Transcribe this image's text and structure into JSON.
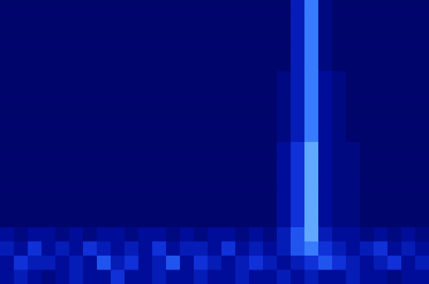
{
  "chart_data": {
    "type": "heatmap",
    "tick_labels": false,
    "color_range": [
      0,
      10
    ],
    "cells": [
      [
        1,
        1,
        1,
        1,
        1,
        1,
        1,
        1,
        1,
        1,
        1,
        1,
        1,
        1,
        1,
        1,
        1,
        1,
        1,
        1,
        1,
        4,
        7,
        2,
        1,
        1,
        1,
        1,
        1,
        1,
        1
      ],
      [
        1,
        1,
        1,
        1,
        1,
        1,
        1,
        1,
        1,
        1,
        1,
        1,
        1,
        1,
        1,
        1,
        1,
        1,
        1,
        1,
        1,
        4,
        7,
        2,
        1,
        1,
        1,
        1,
        1,
        1,
        1
      ],
      [
        1,
        1,
        1,
        1,
        1,
        1,
        1,
        1,
        1,
        1,
        1,
        1,
        1,
        1,
        1,
        1,
        1,
        1,
        1,
        1,
        1,
        4,
        7,
        2,
        1,
        1,
        1,
        1,
        1,
        1,
        1
      ],
      [
        1,
        1,
        1,
        1,
        1,
        1,
        1,
        1,
        1,
        1,
        1,
        1,
        1,
        1,
        1,
        1,
        1,
        1,
        1,
        1,
        1,
        4,
        7,
        2,
        1,
        1,
        1,
        1,
        1,
        1,
        1
      ],
      [
        1,
        1,
        1,
        1,
        1,
        1,
        1,
        1,
        1,
        1,
        1,
        1,
        1,
        1,
        1,
        1,
        1,
        1,
        1,
        1,
        1,
        4,
        7,
        2,
        1,
        1,
        1,
        1,
        1,
        1,
        1
      ],
      [
        1,
        1,
        1,
        1,
        1,
        1,
        1,
        1,
        1,
        1,
        1,
        1,
        1,
        1,
        1,
        1,
        1,
        1,
        1,
        1,
        2,
        4,
        7,
        3,
        2,
        1,
        1,
        1,
        1,
        1,
        1
      ],
      [
        1,
        1,
        1,
        1,
        1,
        1,
        1,
        1,
        1,
        1,
        1,
        1,
        1,
        1,
        1,
        1,
        1,
        1,
        1,
        1,
        2,
        4,
        7,
        3,
        2,
        1,
        1,
        1,
        1,
        1,
        1
      ],
      [
        1,
        1,
        1,
        1,
        1,
        1,
        1,
        1,
        1,
        1,
        1,
        1,
        1,
        1,
        1,
        1,
        1,
        1,
        1,
        1,
        2,
        4,
        7,
        3,
        2,
        1,
        1,
        1,
        1,
        1,
        1
      ],
      [
        1,
        1,
        1,
        1,
        1,
        1,
        1,
        1,
        1,
        1,
        1,
        1,
        1,
        1,
        1,
        1,
        1,
        1,
        1,
        1,
        2,
        4,
        7,
        3,
        2,
        1,
        1,
        1,
        1,
        1,
        1
      ],
      [
        1,
        1,
        1,
        1,
        1,
        1,
        1,
        1,
        1,
        1,
        1,
        1,
        1,
        1,
        1,
        1,
        1,
        1,
        1,
        1,
        2,
        4,
        7,
        3,
        2,
        1,
        1,
        1,
        1,
        1,
        1
      ],
      [
        1,
        1,
        1,
        1,
        1,
        1,
        1,
        1,
        1,
        1,
        1,
        1,
        1,
        1,
        1,
        1,
        1,
        1,
        1,
        1,
        3,
        5,
        8,
        3,
        2,
        2,
        1,
        1,
        1,
        1,
        1
      ],
      [
        1,
        1,
        1,
        1,
        1,
        1,
        1,
        1,
        1,
        1,
        1,
        1,
        1,
        1,
        1,
        1,
        1,
        1,
        1,
        1,
        3,
        5,
        8,
        3,
        2,
        2,
        1,
        1,
        1,
        1,
        1
      ],
      [
        1,
        1,
        1,
        1,
        1,
        1,
        1,
        1,
        1,
        1,
        1,
        1,
        1,
        1,
        1,
        1,
        1,
        1,
        1,
        1,
        3,
        5,
        8,
        3,
        2,
        2,
        1,
        1,
        1,
        1,
        1
      ],
      [
        1,
        1,
        1,
        1,
        1,
        1,
        1,
        1,
        1,
        1,
        1,
        1,
        1,
        1,
        1,
        1,
        1,
        1,
        1,
        1,
        3,
        5,
        8,
        3,
        2,
        2,
        1,
        1,
        1,
        1,
        1
      ],
      [
        1,
        1,
        1,
        1,
        1,
        1,
        1,
        1,
        1,
        1,
        1,
        1,
        1,
        1,
        1,
        1,
        1,
        1,
        1,
        1,
        3,
        5,
        8,
        3,
        2,
        2,
        1,
        1,
        1,
        1,
        1
      ],
      [
        1,
        1,
        1,
        1,
        1,
        1,
        1,
        1,
        1,
        1,
        1,
        1,
        1,
        1,
        1,
        1,
        1,
        1,
        1,
        1,
        3,
        5,
        8,
        3,
        2,
        2,
        1,
        1,
        1,
        1,
        1
      ],
      [
        3,
        2,
        3,
        3,
        2,
        3,
        2,
        3,
        3,
        2,
        3,
        3,
        2,
        3,
        2,
        3,
        3,
        2,
        3,
        2,
        4,
        6,
        8,
        4,
        3,
        3,
        2,
        3,
        2,
        3,
        2
      ],
      [
        4,
        3,
        5,
        3,
        4,
        3,
        5,
        4,
        3,
        4,
        3,
        5,
        3,
        4,
        4,
        3,
        5,
        3,
        4,
        3,
        4,
        6,
        7,
        5,
        4,
        3,
        4,
        5,
        3,
        4,
        3
      ],
      [
        3,
        5,
        4,
        4,
        3,
        4,
        3,
        6,
        4,
        5,
        3,
        4,
        6,
        3,
        5,
        4,
        3,
        4,
        5,
        4,
        3,
        4,
        5,
        6,
        5,
        4,
        3,
        4,
        5,
        3,
        4
      ],
      [
        3,
        4,
        3,
        2,
        3,
        4,
        3,
        3,
        5,
        3,
        3,
        4,
        3,
        3,
        4,
        3,
        3,
        4,
        3,
        3,
        4,
        3,
        4,
        3,
        3,
        4,
        3,
        3,
        2,
        3,
        3
      ]
    ]
  }
}
